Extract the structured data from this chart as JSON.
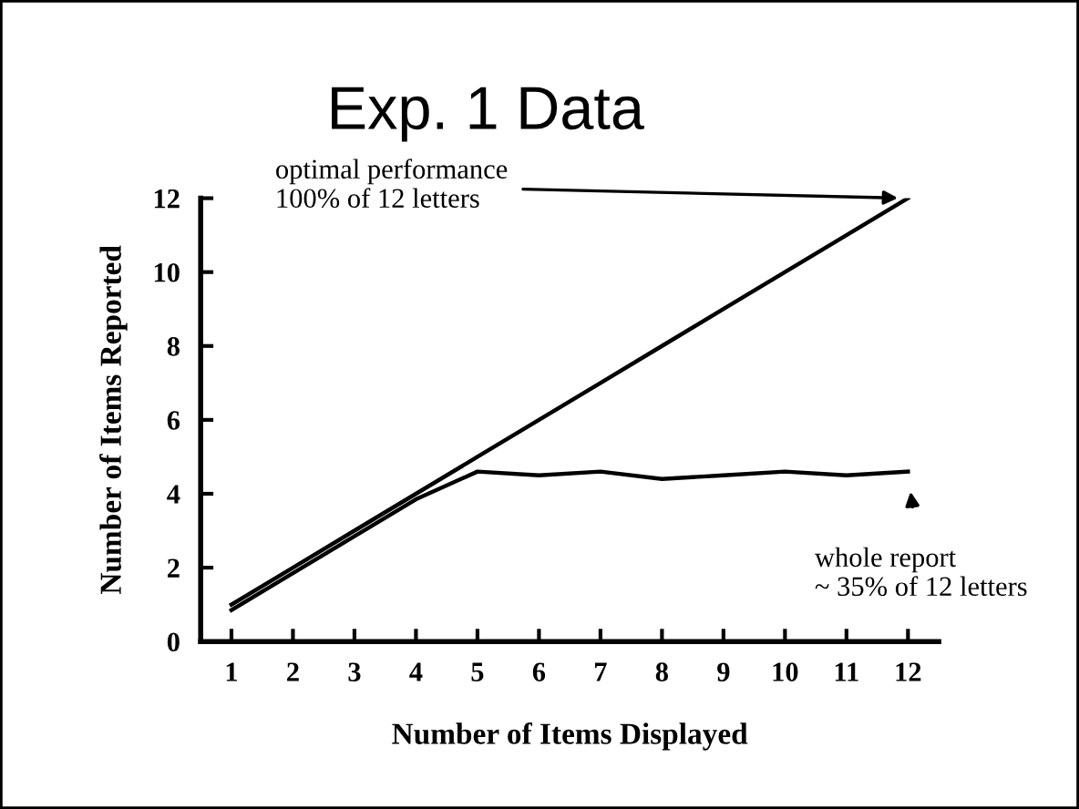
{
  "chart_data": {
    "type": "line",
    "title": "Exp. 1 Data",
    "xlabel": "Number of Items Displayed",
    "ylabel": "Number of Items Reported",
    "categories": [
      "1",
      "2",
      "3",
      "4",
      "5",
      "6",
      "7",
      "8",
      "9",
      "10",
      "11",
      "12"
    ],
    "series": [
      {
        "color": "#000000",
        "values": [
          1,
          2,
          3,
          4,
          5,
          6,
          7,
          8,
          9,
          10,
          11,
          12
        ]
      },
      {
        "color": "#000000",
        "values": [
          0.85,
          1.85,
          2.85,
          3.85,
          4.6,
          4.5,
          4.6,
          4.4,
          4.5,
          4.6,
          4.5,
          4.6
        ]
      }
    ],
    "ylim": [
      0,
      12
    ],
    "yticks": [
      0,
      2,
      4,
      6,
      8,
      10,
      12
    ],
    "grid": false,
    "legend": false,
    "marker": "none",
    "line_style": "solid",
    "annotations": [
      {
        "text": "optimal performance\n100% of 12 letters",
        "x": "12",
        "y": 12
      },
      {
        "text": "whole report\n~ 35% of 12 letters",
        "x": "12",
        "y": 4.6
      }
    ]
  }
}
